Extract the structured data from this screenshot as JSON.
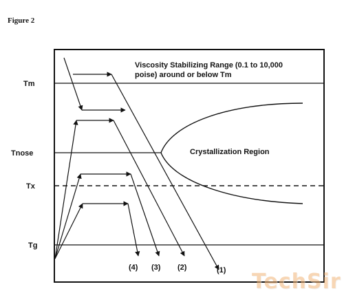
{
  "figure_label": "Figure 2",
  "axis_labels": {
    "tm": "Tm",
    "tnose": "Tnose",
    "tx": "Tx",
    "tg": "Tg"
  },
  "regions": {
    "viscosity_line1": "Viscosity Stabilizing Range (0.1 to 10,000",
    "viscosity_line2": "poise) around or below Tm",
    "crystallization": "Crystallization Region"
  },
  "paths": {
    "p1": "(1)",
    "p2": "(2)",
    "p3": "(3)",
    "p4": "(4)"
  },
  "watermark": "TechSir"
}
